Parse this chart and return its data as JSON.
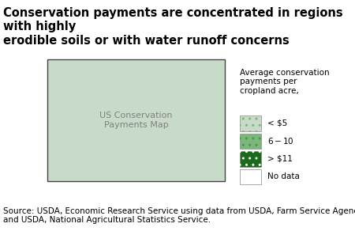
{
  "title": "Conservation payments are concentrated in regions with highly\nerodible soils or with water runoff concerns",
  "title_fontsize": 10.5,
  "legend_title": "Average conservation\npayments per\ncropland acre,",
  "legend_items": [
    {
      "label": "< $5",
      "color": "#c8dbc8",
      "hatch": "...."
    },
    {
      "label": "$6 - $10",
      "color": "#7ab87a",
      "hatch": "...."
    },
    {
      "label": "> $11",
      "color": "#1a6b1a",
      "hatch": "...."
    },
    {
      "label": "No data",
      "color": "#ffffff",
      "hatch": ""
    }
  ],
  "source_text": "Source: USDA, Economic Research Service using data from USDA, Farm Service Agency\nand USDA, National Agricultural Statistics Service.",
  "source_fontsize": 7.5,
  "background_color": "#ffffff",
  "color_lt5": "#c8dbc8",
  "color_6to10": "#7ab87a",
  "color_gt11": "#1a6b1a",
  "color_nodata": "#ffffff",
  "color_border": "#888888",
  "color_state_border": "#444444"
}
